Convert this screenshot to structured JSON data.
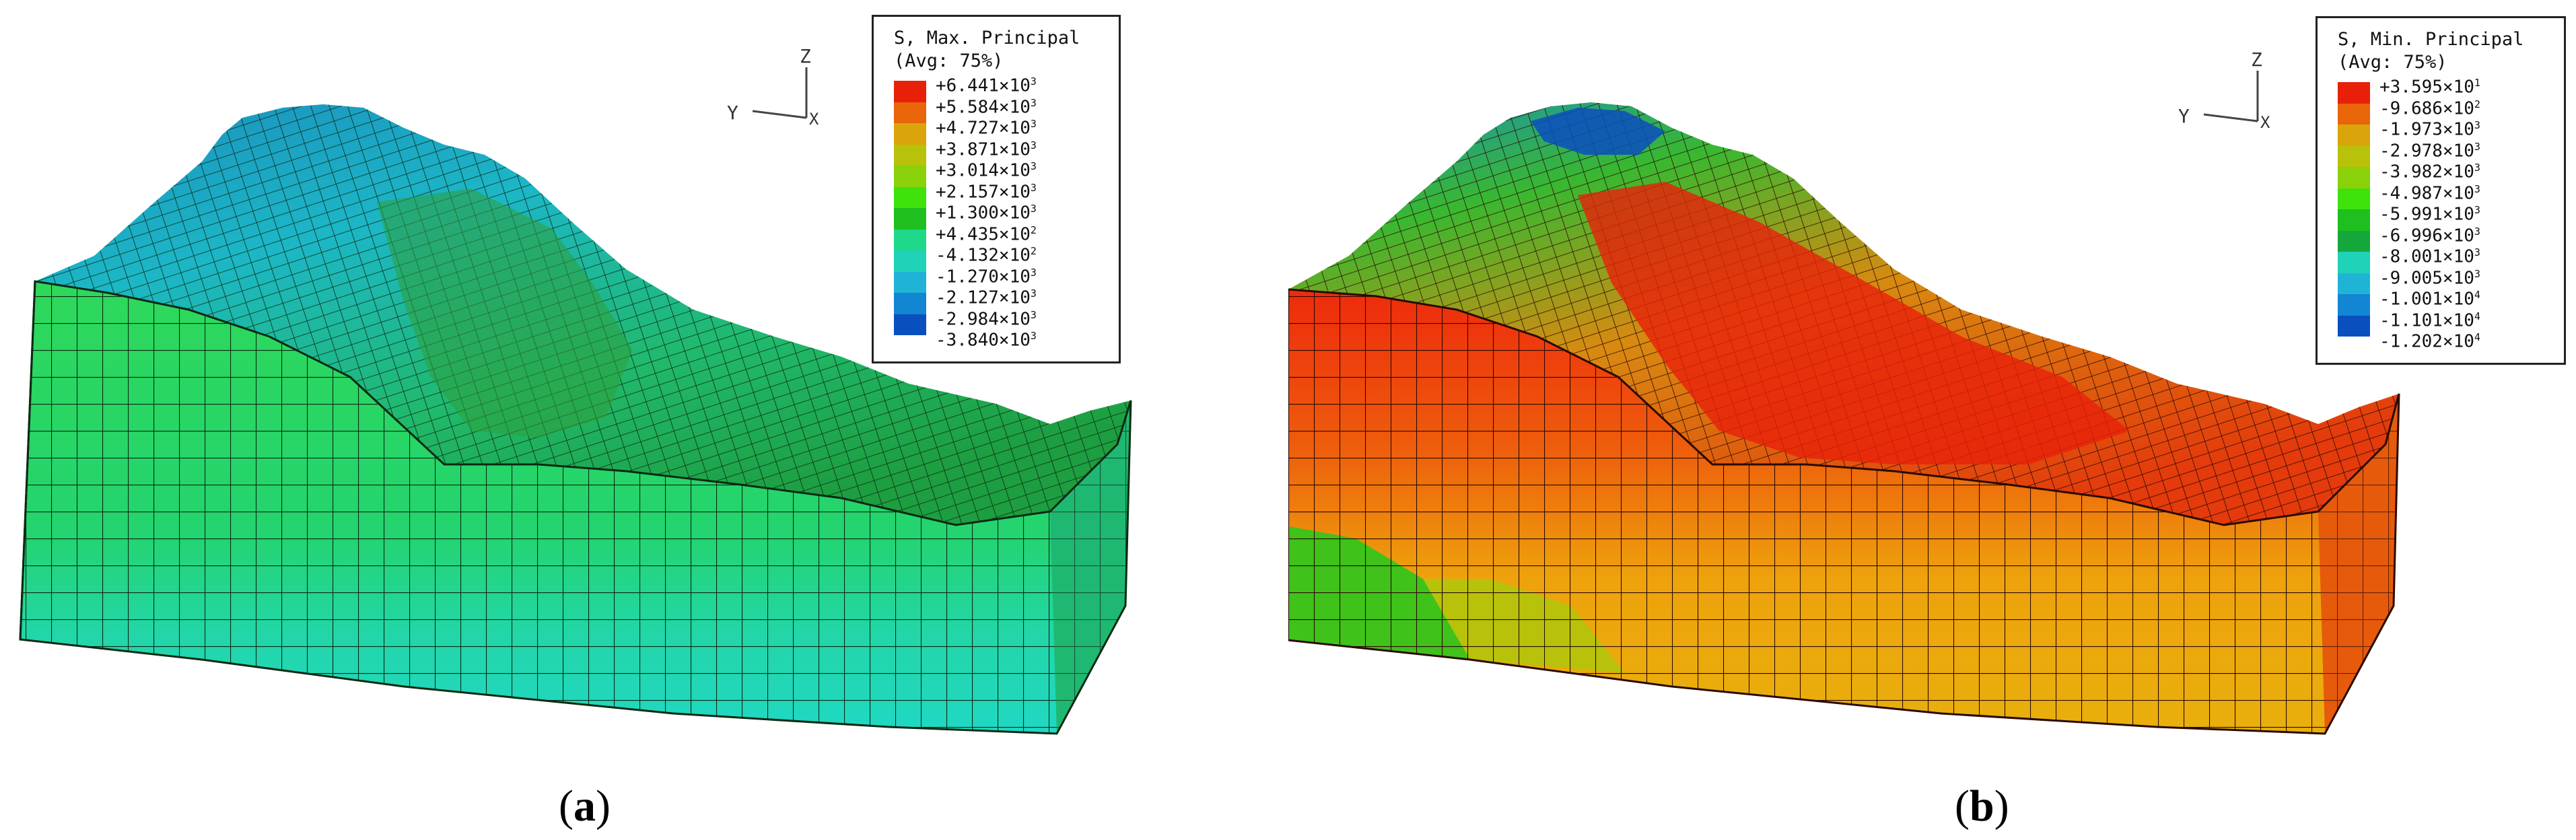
{
  "panels": [
    {
      "id": "a",
      "caption_letter": "a",
      "legend": {
        "title_line1": "S, Max. Principal",
        "title_line2": "(Avg: 75%)",
        "entries": [
          {
            "mantissa": "+6.441",
            "exponent": "3",
            "color": "#e8200a"
          },
          {
            "mantissa": "+5.584",
            "exponent": "3",
            "color": "#e8650a"
          },
          {
            "mantissa": "+4.727",
            "exponent": "3",
            "color": "#d9a50a"
          },
          {
            "mantissa": "+3.871",
            "exponent": "3",
            "color": "#b8c20a"
          },
          {
            "mantissa": "+3.014",
            "exponent": "3",
            "color": "#8ad10a"
          },
          {
            "mantissa": "+2.157",
            "exponent": "3",
            "color": "#3fe20a"
          },
          {
            "mantissa": "+1.300",
            "exponent": "3",
            "color": "#1fbf1f"
          },
          {
            "mantissa": "+4.435",
            "exponent": "2",
            "color": "#1fd88a"
          },
          {
            "mantissa": "-4.132",
            "exponent": "2",
            "color": "#1fd2b8"
          },
          {
            "mantissa": "-1.270",
            "exponent": "3",
            "color": "#1fb4d6"
          },
          {
            "mantissa": "-2.127",
            "exponent": "3",
            "color": "#1286d2"
          },
          {
            "mantissa": "-2.984",
            "exponent": "3",
            "color": "#0a4fbe"
          },
          {
            "mantissa": "-3.840",
            "exponent": "3",
            "color": "#061c9a"
          }
        ]
      },
      "triad": {
        "z": "Z",
        "y": "Y",
        "x": "X"
      }
    },
    {
      "id": "b",
      "caption_letter": "b",
      "legend": {
        "title_line1": "S, Min. Principal",
        "title_line2": "(Avg: 75%)",
        "entries": [
          {
            "mantissa": "+3.595",
            "exponent": "1",
            "color": "#e8200a"
          },
          {
            "mantissa": "-9.686",
            "exponent": "2",
            "color": "#e8650a"
          },
          {
            "mantissa": "-1.973",
            "exponent": "3",
            "color": "#d9a50a"
          },
          {
            "mantissa": "-2.978",
            "exponent": "3",
            "color": "#b8c20a"
          },
          {
            "mantissa": "-3.982",
            "exponent": "3",
            "color": "#8ad10a"
          },
          {
            "mantissa": "-4.987",
            "exponent": "3",
            "color": "#3fe20a"
          },
          {
            "mantissa": "-5.991",
            "exponent": "3",
            "color": "#1fbf1f"
          },
          {
            "mantissa": "-6.996",
            "exponent": "3",
            "color": "#14a83c"
          },
          {
            "mantissa": "-8.001",
            "exponent": "3",
            "color": "#1fd2b8"
          },
          {
            "mantissa": "-9.005",
            "exponent": "3",
            "color": "#1fb4d6"
          },
          {
            "mantissa": "-1.001",
            "exponent": "4",
            "color": "#1286d2"
          },
          {
            "mantissa": "-1.101",
            "exponent": "4",
            "color": "#0a4fbe"
          },
          {
            "mantissa": "-1.202",
            "exponent": "4",
            "color": "#061c9a"
          }
        ]
      },
      "triad": {
        "z": "Z",
        "y": "Y",
        "x": "X"
      }
    }
  ]
}
